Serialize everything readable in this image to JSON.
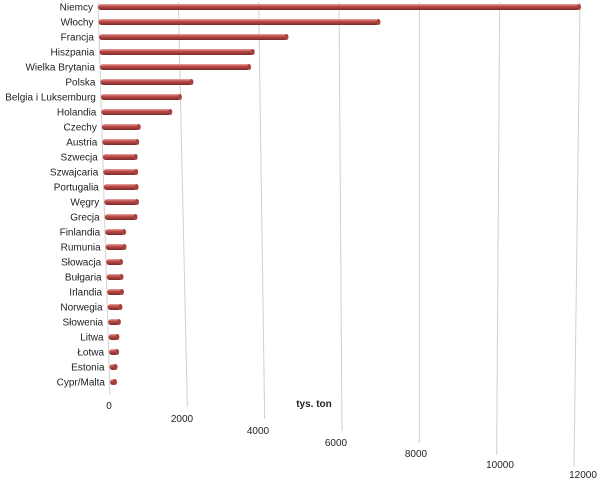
{
  "chart_data": {
    "type": "bar",
    "orientation": "horizontal",
    "style": "3d-cylinder",
    "categories": [
      "Niemcy",
      "Włochy",
      "Francja",
      "Hiszpania",
      "Wielka Brytania",
      "Polska",
      "Belgia i Luksemburg",
      "Holandia",
      "Czechy",
      "Austria",
      "Szwecja",
      "Szwajcaria",
      "Portugalia",
      "Węgry",
      "Grecja",
      "Finlandia",
      "Rumunia",
      "Słowacja",
      "Bułgaria",
      "Irlandia",
      "Norwegia",
      "Słowenia",
      "Litwa",
      "Łotwa",
      "Estonia",
      "Cypr/Malta"
    ],
    "values": [
      12000,
      7000,
      4700,
      3850,
      3750,
      2300,
      2000,
      1750,
      950,
      900,
      850,
      850,
      850,
      850,
      800,
      500,
      500,
      400,
      400,
      400,
      350,
      300,
      250,
      230,
      180,
      120
    ],
    "unit_label": "tys. ton",
    "xlim": [
      0,
      12000
    ],
    "xticks": [
      "0",
      "2000",
      "4000",
      "6000",
      "8000",
      "10000",
      "12000"
    ],
    "grid": true,
    "bar_color": "#c0504d"
  }
}
